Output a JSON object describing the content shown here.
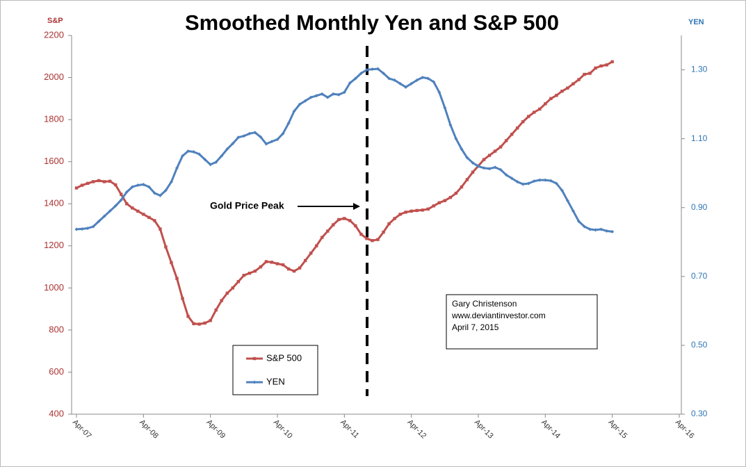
{
  "chart_data": {
    "type": "line",
    "title": "Smoothed Monthly Yen and S&P 500",
    "y_label": "S&P",
    "y2_label": "YEN",
    "categories": [
      "Apr-07",
      null,
      null,
      null,
      null,
      null,
      null,
      null,
      null,
      null,
      null,
      null,
      "Apr-08",
      null,
      null,
      null,
      null,
      null,
      null,
      null,
      null,
      null,
      null,
      null,
      "Apr-09",
      null,
      null,
      null,
      null,
      null,
      null,
      null,
      null,
      null,
      null,
      null,
      "Apr-10",
      null,
      null,
      null,
      null,
      null,
      null,
      null,
      null,
      null,
      null,
      null,
      "Apr-11",
      null,
      null,
      null,
      null,
      null,
      null,
      null,
      null,
      null,
      null,
      null,
      "Apr-12",
      null,
      null,
      null,
      null,
      null,
      null,
      null,
      null,
      null,
      null,
      null,
      "Apr-13",
      null,
      null,
      null,
      null,
      null,
      null,
      null,
      null,
      null,
      null,
      null,
      "Apr-14",
      null,
      null,
      null,
      null,
      null,
      null,
      null,
      null,
      null,
      null,
      null,
      "Apr-15",
      null,
      null,
      null,
      null,
      null,
      null,
      null,
      null,
      null,
      null,
      null,
      "Apr-16"
    ],
    "series": [
      {
        "name": "S&P 500",
        "color": "#c0504d",
        "axis": "y",
        "values": [
          1475,
          1488,
          1497,
          1505,
          1510,
          1505,
          1507,
          1490,
          1445,
          1400,
          1380,
          1365,
          1350,
          1335,
          1320,
          1280,
          1195,
          1120,
          1045,
          950,
          865,
          830,
          828,
          833,
          845,
          895,
          940,
          975,
          1000,
          1030,
          1060,
          1070,
          1080,
          1100,
          1125,
          1122,
          1115,
          1110,
          1090,
          1080,
          1095,
          1130,
          1165,
          1200,
          1240,
          1270,
          1300,
          1325,
          1330,
          1320,
          1295,
          1255,
          1235,
          1225,
          1230,
          1265,
          1305,
          1330,
          1350,
          1360,
          1365,
          1368,
          1370,
          1375,
          1390,
          1405,
          1415,
          1430,
          1450,
          1480,
          1515,
          1550,
          1580,
          1610,
          1630,
          1650,
          1670,
          1700,
          1730,
          1760,
          1790,
          1815,
          1835,
          1850,
          1875,
          1900,
          1915,
          1935,
          1950,
          1970,
          1990,
          2015,
          2020,
          2045,
          2055,
          2060,
          2075,
          null,
          null,
          null,
          null,
          null,
          null,
          null,
          null,
          null,
          null,
          null,
          null
        ]
      },
      {
        "name": "YEN",
        "color": "#4f81bd",
        "axis": "y2",
        "values": [
          0.837,
          0.838,
          0.84,
          0.845,
          0.86,
          0.875,
          0.89,
          0.905,
          0.922,
          0.945,
          0.96,
          0.965,
          0.967,
          0.96,
          0.942,
          0.935,
          0.95,
          0.975,
          1.015,
          1.05,
          1.064,
          1.062,
          1.055,
          1.04,
          1.025,
          1.032,
          1.05,
          1.07,
          1.086,
          1.104,
          1.108,
          1.115,
          1.118,
          1.105,
          1.085,
          1.092,
          1.098,
          1.115,
          1.145,
          1.18,
          1.2,
          1.21,
          1.22,
          1.225,
          1.23,
          1.22,
          1.23,
          1.228,
          1.235,
          1.262,
          1.275,
          1.29,
          1.3,
          1.302,
          1.303,
          1.29,
          1.275,
          1.27,
          1.26,
          1.25,
          1.26,
          1.27,
          1.278,
          1.275,
          1.265,
          1.235,
          1.19,
          1.14,
          1.1,
          1.07,
          1.045,
          1.03,
          1.02,
          1.015,
          1.013,
          1.017,
          1.01,
          0.995,
          0.985,
          0.975,
          0.968,
          0.97,
          0.977,
          0.98,
          0.98,
          0.978,
          0.97,
          0.95,
          0.92,
          0.89,
          0.86,
          0.845,
          0.837,
          0.835,
          0.837,
          0.832,
          0.83,
          null,
          null,
          null,
          null,
          null,
          null,
          null,
          null,
          null,
          null,
          null,
          null
        ]
      }
    ],
    "ylim": [
      400,
      2200
    ],
    "yticks": [
      400,
      600,
      800,
      1000,
      1200,
      1400,
      1600,
      1800,
      2000,
      2200
    ],
    "y2lim": [
      0.3,
      1.4
    ],
    "y2ticks": [
      {
        "value": 0.3,
        "label": "0.30"
      },
      {
        "value": 0.5,
        "label": "0.50"
      },
      {
        "value": 0.7,
        "label": "0.70"
      },
      {
        "value": 0.9,
        "label": "0.90"
      },
      {
        "value": 1.1,
        "label": "1.10"
      },
      {
        "value": 1.3,
        "label": "1.30"
      }
    ],
    "annotations": [
      "Gold Price Peak",
      "Gary Christenson",
      "www.deviantinvestor.com",
      "April 7, 2015"
    ]
  }
}
